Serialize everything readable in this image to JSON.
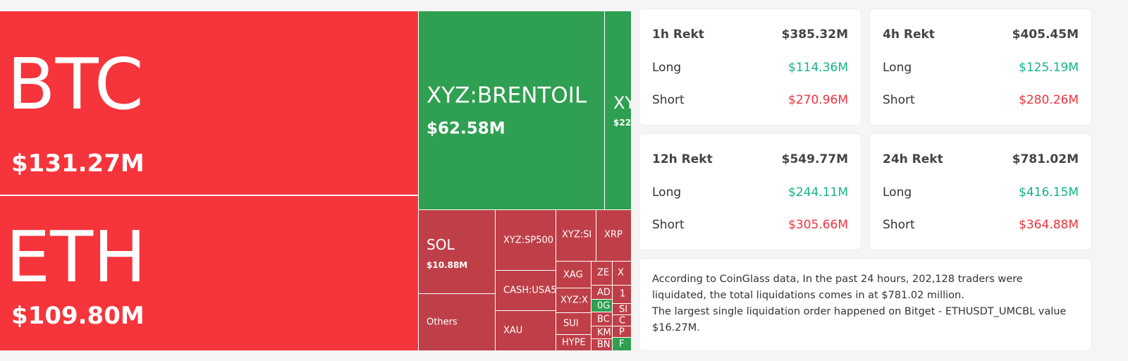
{
  "treemap": {
    "tiles": [
      {
        "label": "BTC",
        "value": "$131.27M"
      },
      {
        "label": "ETH",
        "value": "$109.80M"
      },
      {
        "label": "XYZ:BRENTOIL",
        "value": "$62.58M"
      },
      {
        "label": "XY",
        "value": "$22."
      },
      {
        "label": "SOL",
        "value": "$10.88M"
      },
      {
        "label": "Others"
      },
      {
        "label": "XYZ:SP500"
      },
      {
        "label": "CASH:USA5"
      },
      {
        "label": "XAU"
      },
      {
        "label": "XYZ:SI"
      },
      {
        "label": "XRP"
      },
      {
        "label": "XAG"
      },
      {
        "label": "ZE"
      },
      {
        "label": "X"
      },
      {
        "label": "XYZ:X"
      },
      {
        "label": "SUI"
      },
      {
        "label": "HYPE"
      },
      {
        "label": "AD"
      },
      {
        "label": "0G"
      },
      {
        "label": "BC"
      },
      {
        "label": "KM"
      },
      {
        "label": "BN"
      },
      {
        "label": "1"
      },
      {
        "label": "SI"
      },
      {
        "label": "C"
      },
      {
        "label": "P"
      },
      {
        "label": "F"
      }
    ]
  },
  "cards": [
    {
      "title": "1h Rekt",
      "total": "$385.32M",
      "long_label": "Long",
      "long": "$114.36M",
      "short_label": "Short",
      "short": "$270.96M"
    },
    {
      "title": "4h Rekt",
      "total": "$405.45M",
      "long_label": "Long",
      "long": "$125.19M",
      "short_label": "Short",
      "short": "$280.26M"
    },
    {
      "title": "12h Rekt",
      "total": "$549.77M",
      "long_label": "Long",
      "long": "$244.11M",
      "short_label": "Short",
      "short": "$305.66M"
    },
    {
      "title": "24h Rekt",
      "total": "$781.02M",
      "long_label": "Long",
      "long": "$416.15M",
      "short_label": "Short",
      "short": "$364.88M"
    }
  ],
  "summary": {
    "paragraphs": [
      "According to CoinGlass data, In the past 24 hours, 202,128 traders were liquidated, the total liquidations comes in at $781.02 million.",
      "The largest single liquidation order happened on Bitget - ETHUSDT_UMCBL value $16.27M."
    ]
  }
}
